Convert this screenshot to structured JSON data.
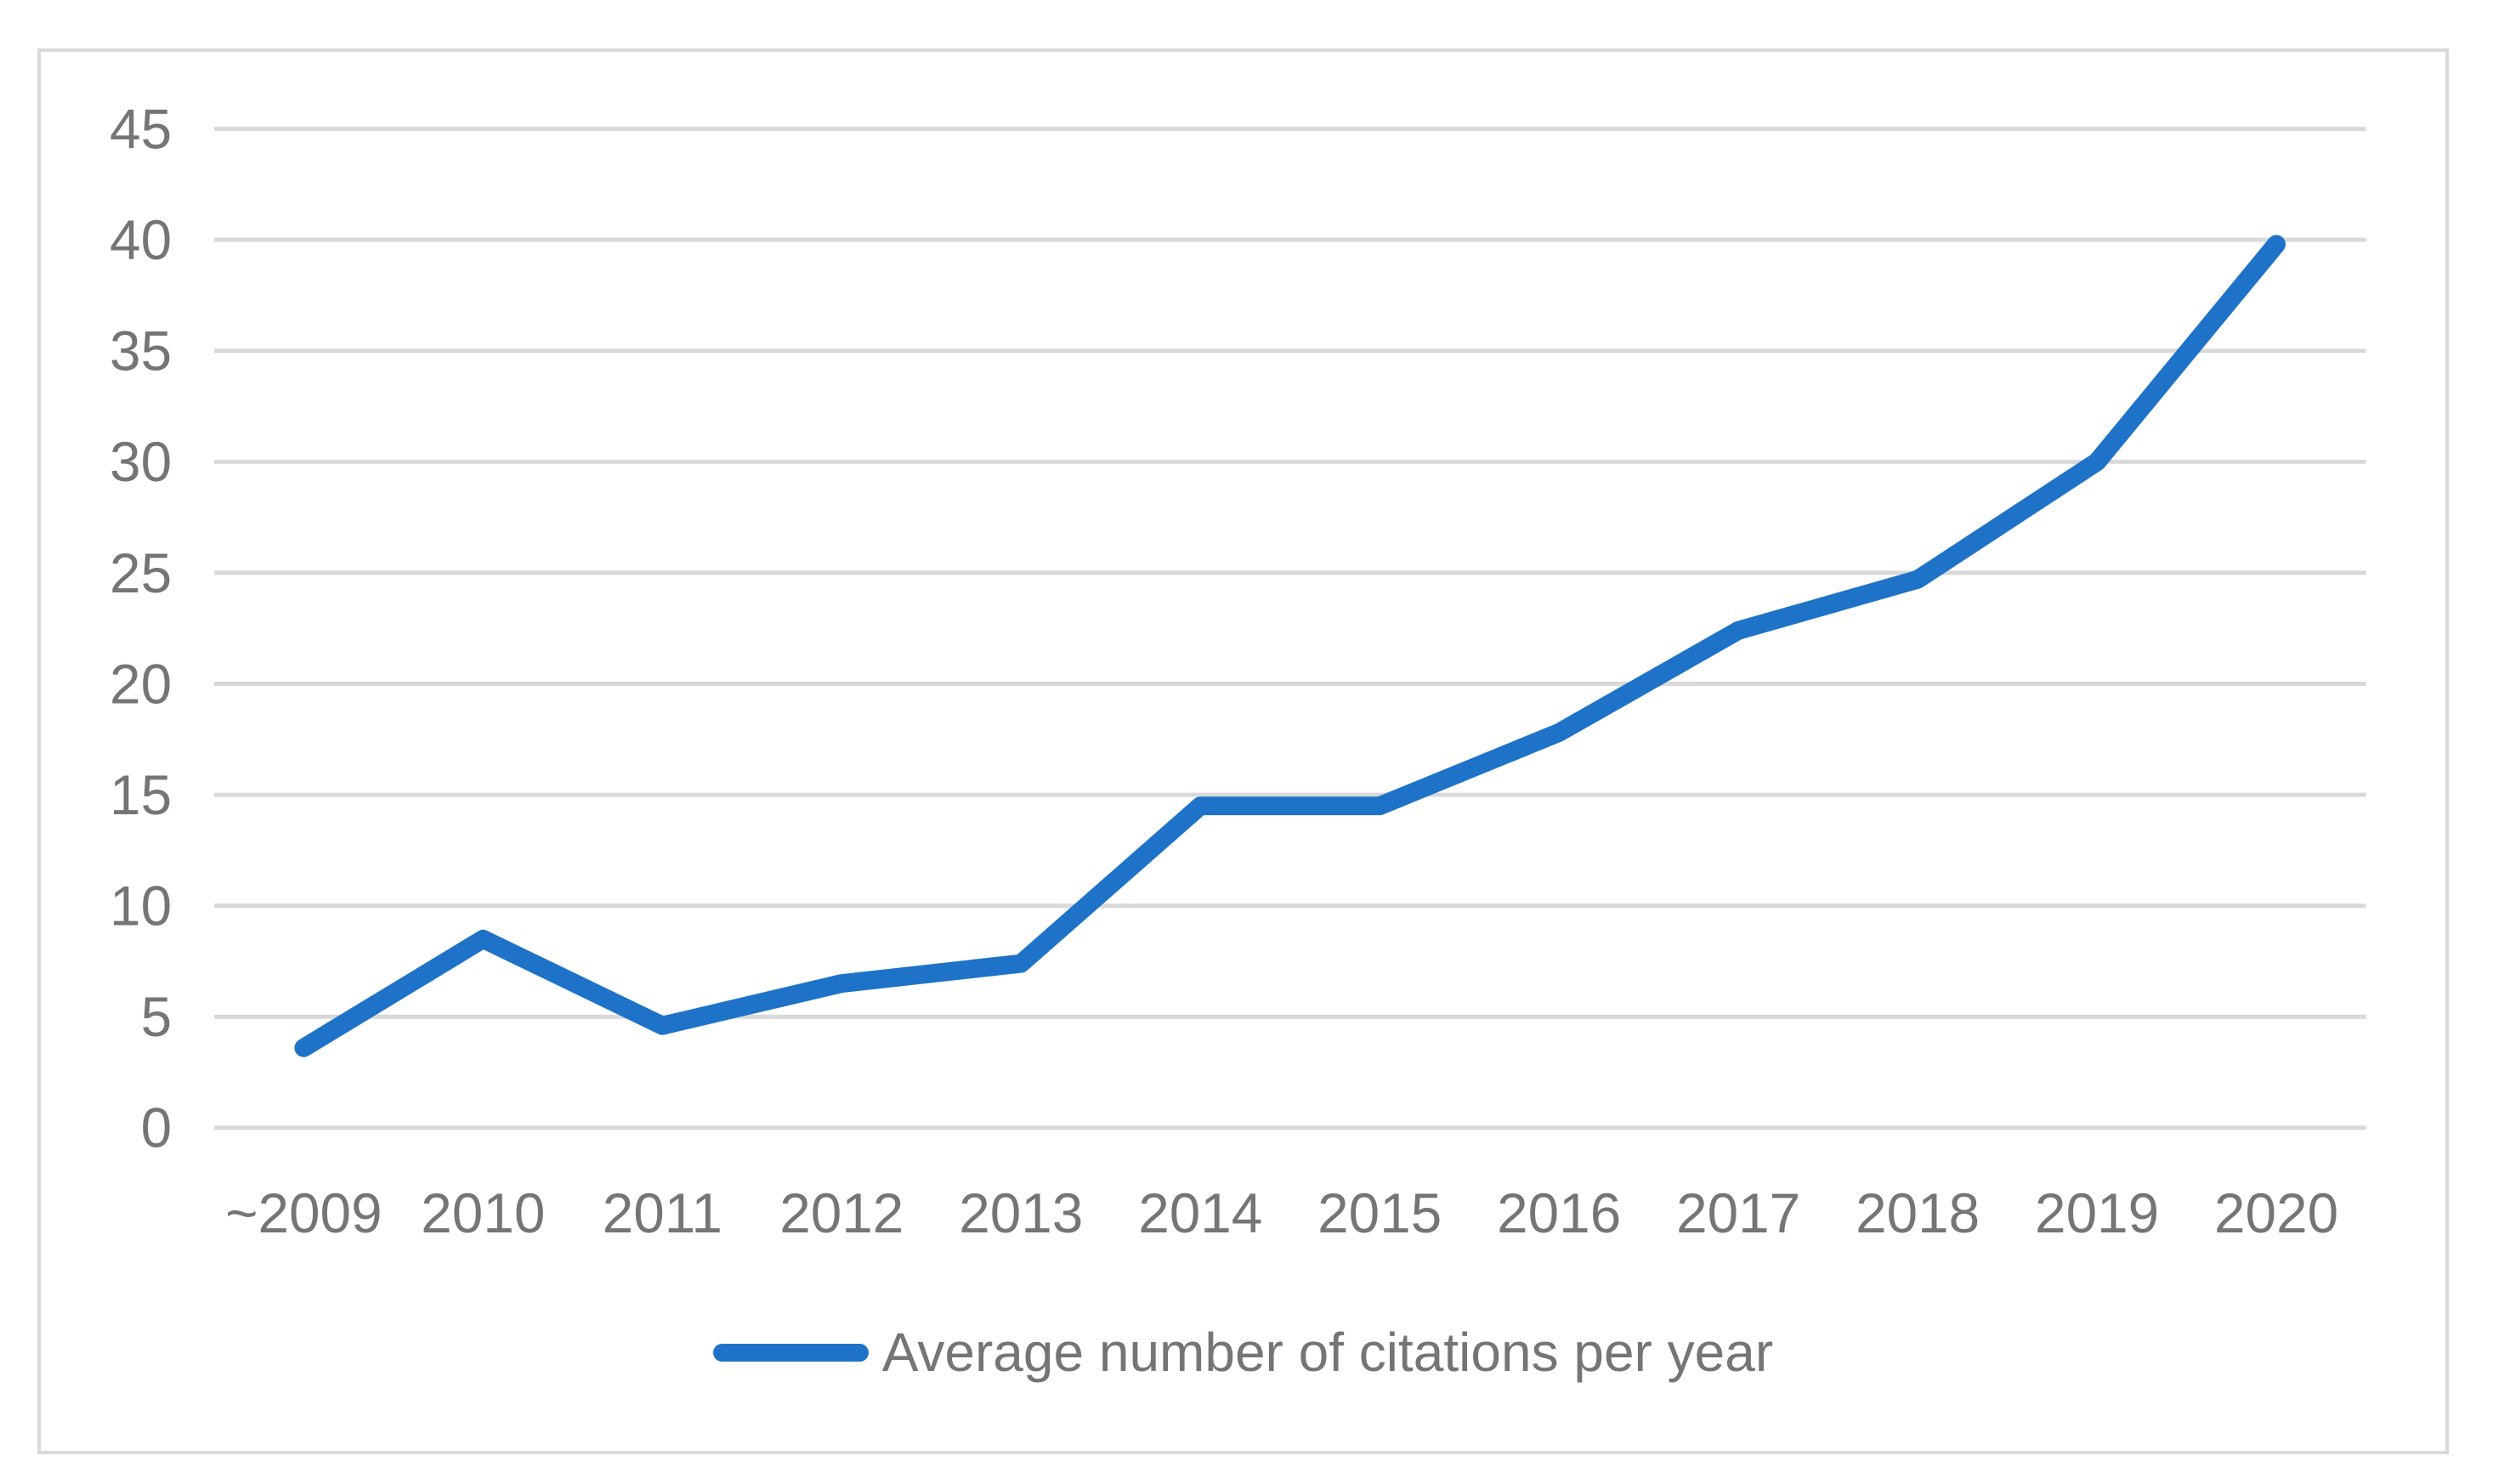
{
  "chart_data": {
    "type": "line",
    "title": "",
    "xlabel": "",
    "ylabel": "",
    "categories": [
      "~2009",
      "2010",
      "2011",
      "2012",
      "2013",
      "2014",
      "2015",
      "2016",
      "2017",
      "2018",
      "2019",
      "2020"
    ],
    "series": [
      {
        "name": "Average number of citations per year",
        "values": [
          3.6,
          8.5,
          4.6,
          6.5,
          7.4,
          14.5,
          14.5,
          17.8,
          22.4,
          24.7,
          30.0,
          39.8
        ]
      }
    ],
    "ylim": [
      0,
      45
    ],
    "ytick_step": 5,
    "ytick_labels": [
      "0",
      "5",
      "10",
      "15",
      "20",
      "25",
      "30",
      "35",
      "40",
      "45"
    ],
    "grid": true,
    "gridlines": "horizontal",
    "legend_position": "bottom-center"
  },
  "legend": {
    "label": "Average number of citations per year",
    "swatch": "blue-line-swatch"
  },
  "colors": {
    "series_line": "#1E73C8",
    "gridline": "#D9D9D9",
    "chart_border": "#D9D9D9",
    "tick_label": "#757575",
    "legend_text": "#757575",
    "background": "#FFFFFF"
  }
}
